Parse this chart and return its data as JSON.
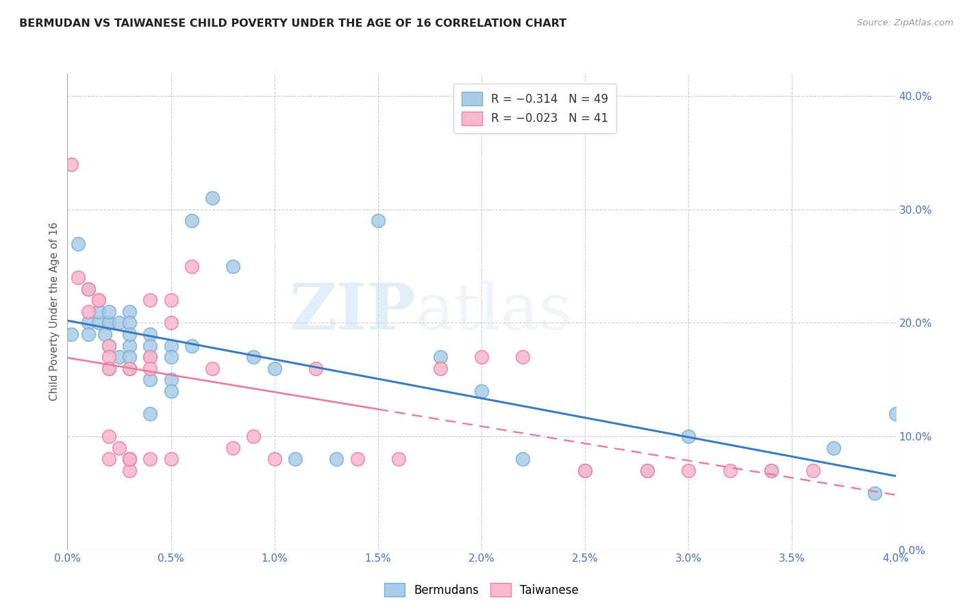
{
  "title": "BERMUDAN VS TAIWANESE CHILD POVERTY UNDER THE AGE OF 16 CORRELATION CHART",
  "source": "Source: ZipAtlas.com",
  "ylabel": "Child Poverty Under the Age of 16",
  "legend_bermudans": "R = -0.314   N = 49",
  "legend_taiwanese": "R = -0.023   N = 41",
  "watermark_zip": "ZIP",
  "watermark_atlas": "atlas",
  "bermudan_color": "#a8cce8",
  "bermudan_edge": "#7aafd4",
  "taiwanese_color": "#f9b8cc",
  "taiwanese_edge": "#f07fa0",
  "trend_bermudan_color": "#3a7bbf",
  "trend_taiwanese_color": "#e87ea0",
  "background_color": "#ffffff",
  "grid_color": "#cccccc",
  "tick_color": "#4472c4",
  "xlim": [
    0.0,
    0.04
  ],
  "ylim": [
    0.0,
    0.42
  ],
  "xticks": [
    0.0,
    0.005,
    0.01,
    0.015,
    0.02,
    0.025,
    0.03,
    0.035,
    0.04
  ],
  "yticks_right": [
    0.0,
    0.1,
    0.2,
    0.3,
    0.4
  ],
  "bermudans_x": [
    0.0002,
    0.0005,
    0.001,
    0.001,
    0.001,
    0.0015,
    0.0015,
    0.0018,
    0.002,
    0.002,
    0.002,
    0.002,
    0.002,
    0.0025,
    0.0025,
    0.003,
    0.003,
    0.003,
    0.003,
    0.003,
    0.003,
    0.004,
    0.004,
    0.004,
    0.004,
    0.004,
    0.005,
    0.005,
    0.005,
    0.005,
    0.006,
    0.006,
    0.007,
    0.008,
    0.009,
    0.01,
    0.011,
    0.013,
    0.015,
    0.018,
    0.02,
    0.022,
    0.025,
    0.028,
    0.03,
    0.034,
    0.037,
    0.039,
    0.04
  ],
  "bermudans_y": [
    0.19,
    0.27,
    0.2,
    0.23,
    0.19,
    0.2,
    0.21,
    0.19,
    0.18,
    0.16,
    0.2,
    0.2,
    0.21,
    0.17,
    0.2,
    0.21,
    0.2,
    0.18,
    0.16,
    0.19,
    0.17,
    0.19,
    0.17,
    0.18,
    0.15,
    0.12,
    0.18,
    0.17,
    0.15,
    0.14,
    0.18,
    0.29,
    0.31,
    0.25,
    0.17,
    0.16,
    0.08,
    0.08,
    0.29,
    0.17,
    0.14,
    0.08,
    0.07,
    0.07,
    0.1,
    0.07,
    0.09,
    0.05,
    0.12
  ],
  "taiwanese_x": [
    0.0002,
    0.0005,
    0.001,
    0.001,
    0.0015,
    0.0015,
    0.002,
    0.002,
    0.002,
    0.002,
    0.002,
    0.0025,
    0.003,
    0.003,
    0.003,
    0.003,
    0.003,
    0.004,
    0.004,
    0.004,
    0.004,
    0.005,
    0.005,
    0.005,
    0.006,
    0.007,
    0.008,
    0.009,
    0.01,
    0.012,
    0.014,
    0.016,
    0.018,
    0.02,
    0.022,
    0.025,
    0.028,
    0.03,
    0.032,
    0.034,
    0.036
  ],
  "taiwanese_y": [
    0.34,
    0.24,
    0.23,
    0.21,
    0.22,
    0.22,
    0.18,
    0.17,
    0.16,
    0.1,
    0.08,
    0.09,
    0.08,
    0.07,
    0.08,
    0.08,
    0.16,
    0.22,
    0.08,
    0.17,
    0.16,
    0.22,
    0.2,
    0.08,
    0.25,
    0.16,
    0.09,
    0.1,
    0.08,
    0.16,
    0.08,
    0.08,
    0.16,
    0.17,
    0.17,
    0.07,
    0.07,
    0.07,
    0.07,
    0.07,
    0.07
  ]
}
